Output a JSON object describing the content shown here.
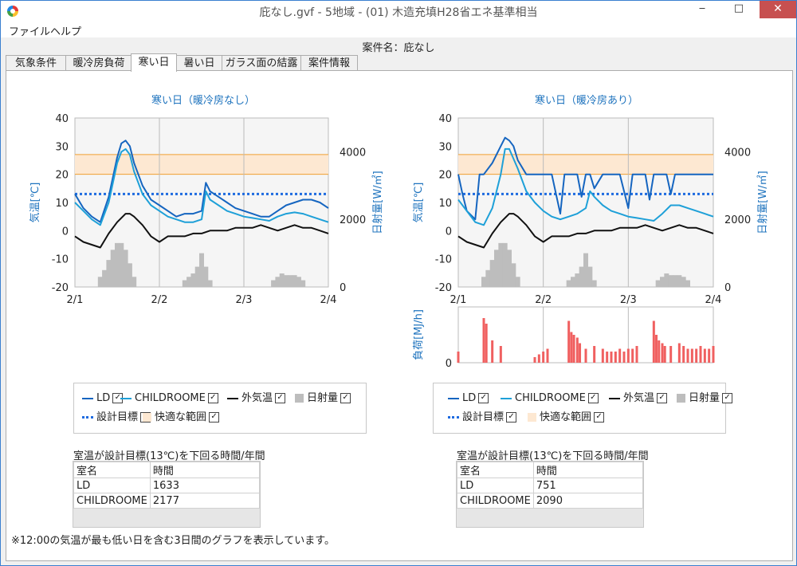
{
  "window": {
    "title": "庇なし.gvf - 5地域 - (01) 木造充填H28省エネ基準相当",
    "minimize": "‒",
    "maximize": "□",
    "close": "✕"
  },
  "menu": [
    "ファイル",
    "ヘルプ"
  ],
  "case_name": "案件名：庇なし",
  "tabs": [
    "気象条件",
    "暖冷房負荷",
    "寒い日",
    "暑い日",
    "ガラス面の結露",
    "案件情報"
  ],
  "active_tab": "寒い日",
  "colors": {
    "ld": "#1565c0",
    "childroome": "#1ea0d8",
    "outdoor": "#111111",
    "solar": "#bdbdbd",
    "target": "#1e6be0",
    "comfort": "#fde8d2",
    "comfort_line": "#f0a030",
    "load": "#f06060",
    "accent": "#1e73be"
  },
  "charts": [
    {
      "title": "寒い日（暖冷房なし）",
      "ylabel_left": "気温[℃]",
      "ylabel_right": "日射量[W/㎡]",
      "y_ticks": [
        "40",
        "30",
        "20",
        "10",
        "0",
        "-10",
        "-20"
      ],
      "y2_ticks": [
        "4000",
        "2000",
        "0"
      ],
      "x_ticks": [
        "2/1",
        "2/2",
        "2/3",
        "2/4"
      ]
    },
    {
      "title": "寒い日（暖冷房あり）",
      "ylabel_left": "気温[℃]",
      "ylabel_right": "日射量[W/㎡]",
      "y_ticks": [
        "40",
        "30",
        "20",
        "10",
        "0",
        "-10",
        "-20"
      ],
      "y2_ticks": [
        "4000",
        "2000",
        "0"
      ],
      "x_ticks": [
        "2/1",
        "2/2",
        "2/3",
        "2/4"
      ],
      "load_ylabel": "負荷[MJ/h]",
      "load_tick": "0"
    }
  ],
  "legend": {
    "ld": "LD",
    "childroome": "CHILDROOME",
    "outdoor": "外気温",
    "solar": "日射量",
    "target": "設計目標",
    "comfort": "快適な範囲",
    "check": "✓"
  },
  "tables": [
    {
      "title": "室温が設計目標(13℃)を下回る時間/年間",
      "headers": [
        "室名",
        "時間"
      ],
      "rows": [
        [
          "LD",
          "1633"
        ],
        [
          "CHILDROOME",
          "2177"
        ]
      ]
    },
    {
      "title": "室温が設計目標(13℃)を下回る時間/年間",
      "headers": [
        "室名",
        "時間"
      ],
      "rows": [
        [
          "LD",
          "751"
        ],
        [
          "CHILDROOME",
          "2090"
        ]
      ]
    }
  ],
  "note": "※12:00の気温が最も低い日を含む3日間のグラフを表示しています。",
  "chart_data": [
    {
      "type": "line",
      "title": "寒い日（暖冷房なし）",
      "x": [
        "2/1",
        "2/2",
        "2/3",
        "2/4"
      ],
      "xlim": [
        0,
        3
      ],
      "ylim": [
        -20,
        40
      ],
      "y2lim": [
        0,
        5000
      ],
      "xlabel": "",
      "ylabel": "気温[℃]",
      "y2label": "日射量[W/㎡]",
      "comfort_range": [
        20,
        27
      ],
      "design_target": 13,
      "grid": true,
      "series": [
        {
          "name": "LD",
          "axis": "left",
          "x": [
            0,
            0.1,
            0.2,
            0.3,
            0.4,
            0.5,
            0.55,
            0.6,
            0.65,
            0.7,
            0.8,
            0.9,
            1.0,
            1.1,
            1.2,
            1.3,
            1.4,
            1.5,
            1.55,
            1.6,
            1.7,
            1.8,
            1.9,
            2.0,
            2.1,
            2.2,
            2.3,
            2.4,
            2.5,
            2.6,
            2.7,
            2.8,
            2.9,
            3.0
          ],
          "values": [
            13,
            8,
            5,
            3,
            12,
            26,
            31,
            32,
            30,
            24,
            16,
            11,
            9,
            7,
            5,
            6,
            6,
            7,
            17,
            14,
            12,
            10,
            8,
            7,
            6,
            5,
            5,
            7,
            9,
            10,
            11,
            11,
            10,
            8
          ]
        },
        {
          "name": "CHILDROOME",
          "axis": "left",
          "x": [
            0,
            0.1,
            0.2,
            0.3,
            0.4,
            0.5,
            0.55,
            0.6,
            0.65,
            0.7,
            0.8,
            0.9,
            1.0,
            1.1,
            1.2,
            1.3,
            1.4,
            1.5,
            1.55,
            1.6,
            1.7,
            1.8,
            1.9,
            2.0,
            2.1,
            2.2,
            2.3,
            2.4,
            2.5,
            2.6,
            2.7,
            2.8,
            2.9,
            3.0
          ],
          "values": [
            10,
            7,
            4,
            2,
            10,
            24,
            28,
            29,
            27,
            21,
            13,
            9,
            7,
            5,
            4,
            3,
            3,
            4,
            14,
            11,
            9,
            7,
            6,
            5,
            4.5,
            4,
            3.5,
            5,
            6,
            6.5,
            6,
            5,
            4,
            3
          ]
        },
        {
          "name": "外気温",
          "axis": "left",
          "x": [
            0,
            0.1,
            0.2,
            0.3,
            0.4,
            0.5,
            0.6,
            0.65,
            0.7,
            0.8,
            0.9,
            1.0,
            1.1,
            1.2,
            1.3,
            1.4,
            1.5,
            1.6,
            1.7,
            1.8,
            1.9,
            2.0,
            2.1,
            2.2,
            2.3,
            2.4,
            2.5,
            2.6,
            2.7,
            2.8,
            2.9,
            3.0
          ],
          "values": [
            -2,
            -4,
            -5,
            -6,
            -1,
            3,
            6,
            6,
            5,
            2,
            -2,
            -4,
            -2,
            -2,
            -2,
            -1,
            -1,
            0,
            0,
            0,
            1,
            1,
            1,
            2,
            1,
            0,
            1,
            2,
            1,
            1,
            0,
            -1
          ]
        },
        {
          "name": "日射量",
          "axis": "right",
          "type": "bar",
          "x": [
            0.3,
            0.35,
            0.4,
            0.45,
            0.5,
            0.55,
            0.6,
            0.65,
            0.7,
            1.3,
            1.35,
            1.4,
            1.45,
            1.5,
            1.55,
            1.6,
            2.35,
            2.4,
            2.45,
            2.5,
            2.55,
            2.6,
            2.65,
            2.7
          ],
          "values": [
            300,
            500,
            800,
            1100,
            1300,
            1300,
            1100,
            700,
            300,
            200,
            300,
            400,
            600,
            1000,
            600,
            200,
            200,
            300,
            400,
            350,
            350,
            350,
            300,
            200
          ]
        }
      ]
    },
    {
      "type": "line",
      "title": "寒い日（暖冷房あり）",
      "x": [
        "2/1",
        "2/2",
        "2/3",
        "2/4"
      ],
      "xlim": [
        0,
        3
      ],
      "ylim": [
        -20,
        40
      ],
      "y2lim": [
        0,
        5000
      ],
      "xlabel": "",
      "ylabel": "気温[℃]",
      "y2label": "日射量[W/㎡]",
      "comfort_range": [
        20,
        27
      ],
      "design_target": 13,
      "grid": true,
      "series": [
        {
          "name": "LD",
          "axis": "left",
          "x": [
            0,
            0.05,
            0.1,
            0.2,
            0.25,
            0.3,
            0.4,
            0.5,
            0.55,
            0.6,
            0.65,
            0.7,
            0.8,
            0.85,
            0.95,
            1.0,
            1.1,
            1.2,
            1.25,
            1.3,
            1.4,
            1.45,
            1.5,
            1.55,
            1.6,
            1.7,
            1.8,
            1.9,
            2.0,
            2.05,
            2.1,
            2.2,
            2.25,
            2.3,
            2.4,
            2.45,
            2.5,
            2.55,
            2.6,
            3.0
          ],
          "values": [
            20,
            13,
            7,
            4,
            20,
            20,
            24,
            30,
            33,
            32,
            30,
            25,
            20,
            20,
            20,
            20,
            20,
            6,
            20,
            20,
            20,
            12,
            20,
            20,
            15,
            20,
            20,
            20,
            8,
            20,
            20,
            20,
            11,
            20,
            20,
            20,
            13,
            20,
            20,
            20
          ]
        },
        {
          "name": "CHILDROOME",
          "axis": "left",
          "x": [
            0,
            0.1,
            0.2,
            0.3,
            0.4,
            0.5,
            0.55,
            0.6,
            0.7,
            0.8,
            0.9,
            1.0,
            1.1,
            1.2,
            1.3,
            1.4,
            1.5,
            1.55,
            1.6,
            1.7,
            1.8,
            1.9,
            2.0,
            2.1,
            2.2,
            2.3,
            2.4,
            2.5,
            2.6,
            2.7,
            2.8,
            2.9,
            3.0
          ],
          "values": [
            11,
            7,
            3,
            2,
            8,
            20,
            29,
            29,
            22,
            14,
            10,
            7,
            5,
            4,
            5,
            6,
            8,
            14,
            12,
            9,
            7,
            6,
            5,
            4.5,
            4,
            3.5,
            6,
            9,
            9,
            8,
            7,
            6,
            5
          ]
        },
        {
          "name": "外気温",
          "axis": "left",
          "x": [
            0,
            0.1,
            0.2,
            0.3,
            0.4,
            0.5,
            0.6,
            0.65,
            0.7,
            0.8,
            0.9,
            1.0,
            1.1,
            1.2,
            1.3,
            1.4,
            1.5,
            1.6,
            1.7,
            1.8,
            1.9,
            2.0,
            2.1,
            2.2,
            2.3,
            2.4,
            2.5,
            2.6,
            2.7,
            2.8,
            2.9,
            3.0
          ],
          "values": [
            -2,
            -4,
            -5,
            -6,
            -1,
            3,
            6,
            6,
            5,
            2,
            -2,
            -4,
            -2,
            -2,
            -2,
            -1,
            -1,
            0,
            0,
            0,
            1,
            1,
            1,
            2,
            1,
            0,
            1,
            2,
            1,
            1,
            0,
            -1
          ]
        },
        {
          "name": "日射量",
          "axis": "right",
          "type": "bar",
          "x": [
            0.3,
            0.35,
            0.4,
            0.45,
            0.5,
            0.55,
            0.6,
            0.65,
            0.7,
            1.3,
            1.35,
            1.4,
            1.45,
            1.5,
            1.55,
            1.6,
            2.35,
            2.4,
            2.45,
            2.5,
            2.55,
            2.6,
            2.65,
            2.7
          ],
          "values": [
            300,
            500,
            800,
            1100,
            1300,
            1300,
            1100,
            700,
            300,
            200,
            300,
            400,
            600,
            1000,
            600,
            200,
            200,
            300,
            400,
            350,
            350,
            350,
            300,
            200
          ]
        }
      ],
      "load_chart": {
        "type": "bar",
        "ylabel": "負荷[MJ/h]",
        "ylim": [
          0,
          1
        ],
        "x": [
          0.0,
          0.3,
          0.33,
          0.4,
          0.5,
          0.9,
          0.95,
          1.0,
          1.05,
          1.3,
          1.33,
          1.36,
          1.4,
          1.43,
          1.5,
          1.6,
          1.7,
          1.75,
          1.8,
          1.85,
          1.9,
          1.95,
          2.0,
          2.05,
          2.1,
          2.3,
          2.33,
          2.36,
          2.4,
          2.43,
          2.5,
          2.6,
          2.65,
          2.7,
          2.75,
          2.8,
          2.85,
          2.9,
          2.95,
          3.0
        ],
        "values": [
          0.2,
          0.8,
          0.7,
          0.4,
          0.3,
          0.1,
          0.15,
          0.2,
          0.25,
          0.75,
          0.55,
          0.5,
          0.45,
          0.35,
          0.25,
          0.3,
          0.25,
          0.2,
          0.2,
          0.2,
          0.25,
          0.2,
          0.25,
          0.25,
          0.3,
          0.75,
          0.5,
          0.4,
          0.35,
          0.3,
          0.3,
          0.35,
          0.3,
          0.25,
          0.25,
          0.25,
          0.3,
          0.25,
          0.25,
          0.3
        ]
      }
    }
  ]
}
